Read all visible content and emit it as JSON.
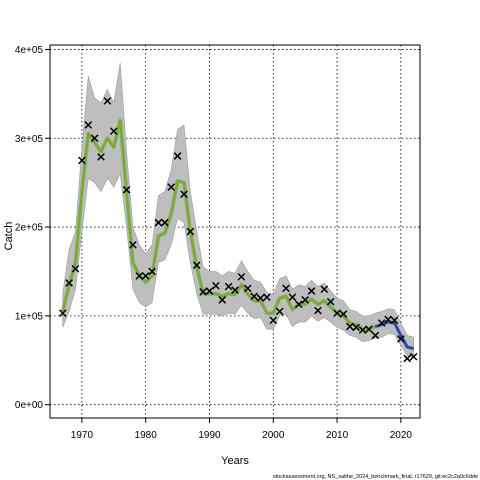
{
  "chart_data": {
    "type": "line",
    "xlabel": "Years",
    "ylabel": "Catch",
    "xlim": [
      1965,
      2023
    ],
    "ylim": [
      -15000,
      405000
    ],
    "x_ticks": [
      1970,
      1980,
      1990,
      2000,
      2010,
      2020
    ],
    "x_tick_labels": [
      "1970",
      "1980",
      "1990",
      "2000",
      "2010",
      "2020"
    ],
    "y_ticks": [
      0,
      100000,
      200000,
      300000,
      400000
    ],
    "y_tick_labels": [
      "0e+00",
      "1e+05",
      "2e+05",
      "3e+05",
      "4e+05"
    ],
    "grid": "dotted",
    "footnote": "stockassessment.org, NS_saithe_2024_benchmark_final, r17629, git:ec2c2a0c6dde",
    "colors": {
      "band": "#bebebe",
      "fit_line": "#8fa800",
      "fit_highlight": "#3cb4b0",
      "forecast_line": "#3b3bb0",
      "observed": "#000000"
    },
    "fit_line": {
      "x": [
        1967,
        1968,
        1969,
        1970,
        1971,
        1972,
        1973,
        1974,
        1975,
        1976,
        1977,
        1978,
        1979,
        1980,
        1981,
        1982,
        1983,
        1984,
        1985,
        1986,
        1987,
        1988,
        1989,
        1990,
        1991,
        1992,
        1993,
        1994,
        1995,
        1996,
        1997,
        1998,
        1999,
        2000,
        2001,
        2002,
        2003,
        2004,
        2005,
        2006,
        2007,
        2008,
        2009,
        2010,
        2011,
        2012,
        2013,
        2014,
        2015,
        2016,
        2017,
        2018,
        2019,
        2020,
        2021,
        2022
      ],
      "y": [
        105000,
        135000,
        160000,
        240000,
        305000,
        295000,
        285000,
        300000,
        290000,
        320000,
        240000,
        160000,
        145000,
        138000,
        145000,
        190000,
        193000,
        215000,
        252000,
        250000,
        195000,
        155000,
        125000,
        125000,
        125000,
        122000,
        125000,
        124000,
        135000,
        125000,
        117000,
        117000,
        103000,
        103000,
        120000,
        122000,
        107000,
        113000,
        113000,
        119000,
        113000,
        117000,
        110000,
        103000,
        100000,
        92000,
        90000,
        85000,
        85000,
        88000,
        90000,
        93000,
        92000,
        78000,
        65000,
        63000
      ]
    },
    "band": {
      "upper": [
        125000,
        175000,
        195000,
        290000,
        370000,
        345000,
        340000,
        355000,
        340000,
        385000,
        285000,
        200000,
        180000,
        170000,
        180000,
        235000,
        240000,
        265000,
        310000,
        315000,
        240000,
        195000,
        155000,
        150000,
        150000,
        145000,
        150000,
        148000,
        162000,
        150000,
        140000,
        138000,
        126000,
        124000,
        142000,
        145000,
        130000,
        135000,
        133000,
        140000,
        133000,
        137000,
        128000,
        120000,
        117000,
        107000,
        105000,
        100000,
        100000,
        103000,
        105000,
        108000,
        107000,
        92000,
        78000,
        76000
      ],
      "lower": [
        87000,
        105000,
        130000,
        195000,
        255000,
        250000,
        240000,
        255000,
        245000,
        260000,
        200000,
        130000,
        115000,
        110000,
        115000,
        160000,
        163000,
        180000,
        210000,
        205000,
        160000,
        125000,
        102000,
        102000,
        102000,
        100000,
        103000,
        102000,
        112000,
        103000,
        97000,
        98000,
        85000,
        85000,
        100000,
        102000,
        88000,
        93000,
        93000,
        100000,
        94000,
        98000,
        93000,
        87000,
        84000,
        78000,
        76000,
        71000,
        72000,
        75000,
        76000,
        80000,
        79000,
        67000,
        55000,
        53000
      ]
    },
    "forecast_line": {
      "x": [
        2016,
        2017,
        2018,
        2019,
        2020,
        2021,
        2022
      ],
      "y": [
        88000,
        90000,
        93000,
        92000,
        78000,
        65000,
        63000
      ]
    },
    "observed": {
      "x": [
        1967,
        1968,
        1969,
        1970,
        1971,
        1972,
        1973,
        1974,
        1975,
        1977,
        1978,
        1979,
        1980,
        1981,
        1982,
        1983,
        1984,
        1985,
        1986,
        1987,
        1988,
        1989,
        1990,
        1991,
        1992,
        1993,
        1994,
        1995,
        1996,
        1997,
        1998,
        1999,
        2000,
        2001,
        2002,
        2003,
        2004,
        2005,
        2006,
        2007,
        2008,
        2009,
        2010,
        2011,
        2012,
        2013,
        2014,
        2015,
        2016,
        2017,
        2018,
        2019,
        2020,
        2021,
        2022
      ],
      "y": [
        103000,
        137000,
        153000,
        275000,
        315000,
        300000,
        279000,
        342000,
        308000,
        242000,
        180000,
        145000,
        145000,
        150000,
        205000,
        205000,
        245000,
        280000,
        237000,
        195000,
        157000,
        127000,
        128000,
        134000,
        118000,
        133000,
        129000,
        144000,
        131000,
        122000,
        120000,
        121000,
        95000,
        105000,
        131000,
        121000,
        113000,
        118000,
        128000,
        106000,
        130000,
        116000,
        103000,
        102000,
        88000,
        87000,
        84000,
        85000,
        78000,
        92000,
        96000,
        95000,
        74000,
        52000,
        54000
      ]
    }
  }
}
